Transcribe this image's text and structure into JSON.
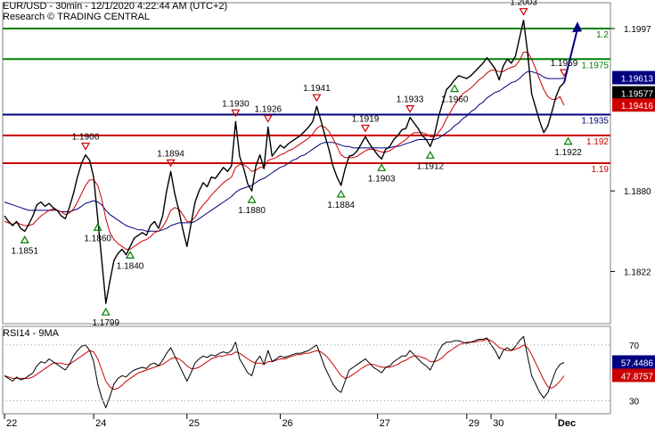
{
  "header": {
    "title": "EUR/USD - 30min - 12/1/2020 4:22:44 AM (UTC+2)",
    "source": "Research © TRADING CENTRAL"
  },
  "colors": {
    "price": "#000000",
    "ma_fast": "#cc0000",
    "ma_slow": "#000080",
    "support": "#cc0000",
    "pivot": "#000080",
    "resistance": "#008000",
    "arrow": "#000080",
    "rsi": "#000000",
    "rsi_ma": "#cc0000"
  },
  "chart_data": [
    {
      "type": "line",
      "title": "EUR/USD - 30min",
      "y_axis_side": "right",
      "ylim": [
        1.1785,
        1.2015
      ],
      "y_ticks": [
        1.1822,
        1.188,
        1.1997
      ],
      "x_date_labels": [
        "22",
        "24",
        "25",
        "26",
        "27",
        "29",
        "30",
        "Dec"
      ],
      "horizontal_levels": [
        {
          "label": "1.2",
          "value": 1.1997,
          "role": "resistance"
        },
        {
          "label": "1.1975",
          "value": 1.1975,
          "role": "resistance"
        },
        {
          "label": "1.1935",
          "value": 1.1935,
          "role": "pivot"
        },
        {
          "label": "1.192",
          "value": 1.192,
          "role": "support"
        },
        {
          "label": "1.19",
          "value": 1.19,
          "role": "support"
        }
      ],
      "price_badges": [
        {
          "value": "1.19613",
          "color": "#000080"
        },
        {
          "value": "1.19577",
          "color": "#000000"
        },
        {
          "value": "1.19416",
          "color": "#cc0000"
        }
      ],
      "swing_labels": [
        {
          "text": "1.1851",
          "value": 1.1851,
          "kind": "low"
        },
        {
          "text": "1.1906",
          "value": 1.1906,
          "kind": "high"
        },
        {
          "text": "1.1860",
          "value": 1.186,
          "kind": "low"
        },
        {
          "text": "1.1799",
          "value": 1.1799,
          "kind": "low"
        },
        {
          "text": "1.1840",
          "value": 1.184,
          "kind": "low"
        },
        {
          "text": "1.1894",
          "value": 1.1894,
          "kind": "high"
        },
        {
          "text": "1.1930",
          "value": 1.193,
          "kind": "high"
        },
        {
          "text": "1.1880",
          "value": 1.188,
          "kind": "low"
        },
        {
          "text": "1.1926",
          "value": 1.1926,
          "kind": "high"
        },
        {
          "text": "1.1941",
          "value": 1.1941,
          "kind": "high"
        },
        {
          "text": "1.1884",
          "value": 1.1884,
          "kind": "low"
        },
        {
          "text": "1.1919",
          "value": 1.1919,
          "kind": "high"
        },
        {
          "text": "1.1903",
          "value": 1.1903,
          "kind": "low"
        },
        {
          "text": "1.1933",
          "value": 1.1933,
          "kind": "high"
        },
        {
          "text": "1.1912",
          "value": 1.1912,
          "kind": "low"
        },
        {
          "text": "1.1960",
          "value": 1.196,
          "kind": "low"
        },
        {
          "text": "1.2003",
          "value": 1.2003,
          "kind": "high"
        },
        {
          "text": "1.1959",
          "value": 1.1959,
          "kind": "high"
        },
        {
          "text": "1.1922",
          "value": 1.1922,
          "kind": "low"
        }
      ],
      "series": [
        {
          "name": "EUR/USD",
          "values": [
            1.1862,
            1.1858,
            1.1855,
            1.1858,
            1.1853,
            1.1851,
            1.1856,
            1.1862,
            1.187,
            1.1872,
            1.1869,
            1.1871,
            1.1868,
            1.1866,
            1.1862,
            1.186,
            1.1868,
            1.1878,
            1.189,
            1.19,
            1.1906,
            1.1902,
            1.189,
            1.186,
            1.183,
            1.1799,
            1.1815,
            1.183,
            1.1835,
            1.1838,
            1.1834,
            1.184,
            1.1846,
            1.1848,
            1.185,
            1.1848,
            1.1855,
            1.1858,
            1.1853,
            1.1862,
            1.188,
            1.1894,
            1.1878,
            1.1866,
            1.1852,
            1.184,
            1.1856,
            1.1872,
            1.188,
            1.1886,
            1.1883,
            1.189,
            1.1889,
            1.1893,
            1.1897,
            1.1894,
            1.1898,
            1.193,
            1.1905,
            1.1896,
            1.1885,
            1.188,
            1.1898,
            1.1906,
            1.1896,
            1.1926,
            1.1905,
            1.1909,
            1.1913,
            1.1911,
            1.1914,
            1.1916,
            1.1918,
            1.192,
            1.1923,
            1.1926,
            1.193,
            1.1941,
            1.1931,
            1.192,
            1.191,
            1.1898,
            1.189,
            1.1884,
            1.1896,
            1.1905,
            1.1906,
            1.1909,
            1.1914,
            1.1919,
            1.1914,
            1.191,
            1.1906,
            1.1903,
            1.191,
            1.1912,
            1.1917,
            1.192,
            1.1924,
            1.1925,
            1.1933,
            1.1929,
            1.1925,
            1.192,
            1.1917,
            1.1912,
            1.192,
            1.1933,
            1.1943,
            1.1953,
            1.1956,
            1.196,
            1.1963,
            1.1962,
            1.1961,
            1.1963,
            1.1966,
            1.1969,
            1.1972,
            1.1976,
            1.1972,
            1.1968,
            1.196,
            1.197,
            1.1975,
            1.1972,
            1.1977,
            1.199,
            1.2003,
            1.198,
            1.195,
            1.194,
            1.193,
            1.1922,
            1.1927,
            1.1937,
            1.1948,
            1.1955,
            1.1958
          ]
        },
        {
          "name": "MA fast",
          "values": [
            1.1858,
            1.1857,
            1.1856,
            1.1857,
            1.1856,
            1.1855,
            1.1855,
            1.1856,
            1.1859,
            1.1862,
            1.1864,
            1.1866,
            1.1867,
            1.1866,
            1.1865,
            1.1863,
            1.1864,
            1.1867,
            1.1872,
            1.1878,
            1.1884,
            1.1888,
            1.1888,
            1.1884,
            1.1874,
            1.186,
            1.185,
            1.1845,
            1.1842,
            1.184,
            1.1838,
            1.1838,
            1.184,
            1.1842,
            1.1844,
            1.1845,
            1.1847,
            1.185,
            1.1851,
            1.1854,
            1.1859,
            1.1866,
            1.1868,
            1.1867,
            1.1863,
            1.1858,
            1.1858,
            1.1861,
            1.1866,
            1.187,
            1.1873,
            1.1877,
            1.188,
            1.1883,
            1.1886,
            1.1888,
            1.189,
            1.1897,
            1.1899,
            1.1899,
            1.1897,
            1.1894,
            1.1895,
            1.1897,
            1.1897,
            1.1902,
            1.1903,
            1.1904,
            1.1906,
            1.1907,
            1.1909,
            1.191,
            1.1912,
            1.1914,
            1.1916,
            1.1918,
            1.1921,
            1.1925,
            1.1927,
            1.1926,
            1.1923,
            1.1918,
            1.1912,
            1.1906,
            1.1904,
            1.1904,
            1.1904,
            1.1905,
            1.1907,
            1.1909,
            1.191,
            1.191,
            1.1909,
            1.1908,
            1.1908,
            1.1909,
            1.1911,
            1.1913,
            1.1915,
            1.1917,
            1.192,
            1.1922,
            1.1922,
            1.1922,
            1.1921,
            1.1919,
            1.1919,
            1.1922,
            1.1926,
            1.1932,
            1.1937,
            1.1942,
            1.1946,
            1.195,
            1.1952,
            1.1954,
            1.1957,
            1.196,
            1.1962,
            1.1965,
            1.1967,
            1.1967,
            1.1966,
            1.1966,
            1.1968,
            1.1969,
            1.197,
            1.1974,
            1.198,
            1.198,
            1.1975,
            1.1968,
            1.196,
            1.1953,
            1.1948,
            1.1946,
            1.1946,
            1.1948,
            1.19416
          ]
        },
        {
          "name": "MA slow",
          "values": [
            1.1872,
            1.1871,
            1.187,
            1.1869,
            1.1868,
            1.1867,
            1.1866,
            1.1866,
            1.1866,
            1.1866,
            1.1866,
            1.1866,
            1.1866,
            1.1866,
            1.1865,
            1.1865,
            1.1865,
            1.1866,
            1.1867,
            1.1869,
            1.1871,
            1.1872,
            1.1873,
            1.1872,
            1.187,
            1.1866,
            1.1863,
            1.1861,
            1.1859,
            1.1857,
            1.1855,
            1.1854,
            1.1853,
            1.1852,
            1.1852,
            1.1851,
            1.1851,
            1.1851,
            1.1851,
            1.1852,
            1.1853,
            1.1855,
            1.1856,
            1.1857,
            1.1857,
            1.1857,
            1.1857,
            1.1858,
            1.186,
            1.1862,
            1.1864,
            1.1866,
            1.1868,
            1.187,
            1.1872,
            1.1874,
            1.1876,
            1.1879,
            1.1881,
            1.1882,
            1.1883,
            1.1884,
            1.1886,
            1.1888,
            1.1889,
            1.1891,
            1.1893,
            1.1895,
            1.1897,
            1.1898,
            1.19,
            1.1902,
            1.1903,
            1.1905,
            1.1906,
            1.1908,
            1.191,
            1.1912,
            1.1914,
            1.1915,
            1.1915,
            1.1915,
            1.1914,
            1.1913,
            1.1912,
            1.1912,
            1.1911,
            1.1911,
            1.1911,
            1.1911,
            1.1911,
            1.1911,
            1.1911,
            1.1911,
            1.1911,
            1.1911,
            1.1912,
            1.1912,
            1.1913,
            1.1914,
            1.1915,
            1.1916,
            1.1917,
            1.1917,
            1.1917,
            1.1917,
            1.1917,
            1.1918,
            1.192,
            1.1922,
            1.1924,
            1.1927,
            1.1929,
            1.1932,
            1.1934,
            1.1937,
            1.1939,
            1.1942,
            1.1944,
            1.1947,
            1.1949,
            1.1951,
            1.1952,
            1.1954,
            1.1956,
            1.1958,
            1.1959,
            1.1961,
            1.1964,
            1.1966,
            1.1966,
            1.1965,
            1.1964,
            1.1962,
            1.1961,
            1.1961,
            1.1961,
            1.1961,
            1.19613
          ]
        }
      ],
      "forecast_arrow": {
        "from_value": 1.1958,
        "to_value": 1.2002
      }
    },
    {
      "type": "line",
      "title": "RSI14 - 9MA",
      "ylim": [
        22,
        82
      ],
      "y_ticks": [
        30,
        70
      ],
      "badges": [
        {
          "value": "57.4486",
          "color": "#000080"
        },
        {
          "value": "47.8757",
          "color": "#cc0000"
        }
      ],
      "series": [
        {
          "name": "RSI14",
          "values": [
            48,
            46,
            44,
            47,
            45,
            46,
            48,
            50,
            55,
            58,
            57,
            60,
            58,
            56,
            54,
            52,
            56,
            62,
            66,
            69,
            70,
            66,
            58,
            42,
            32,
            25,
            33,
            42,
            46,
            48,
            47,
            50,
            52,
            53,
            54,
            53,
            56,
            57,
            55,
            59,
            64,
            68,
            62,
            56,
            50,
            44,
            50,
            57,
            60,
            62,
            61,
            63,
            62,
            64,
            65,
            64,
            66,
            72,
            60,
            55,
            50,
            48,
            58,
            62,
            56,
            66,
            58,
            60,
            62,
            61,
            62,
            63,
            64,
            64,
            65,
            66,
            68,
            70,
            62,
            54,
            48,
            42,
            38,
            36,
            44,
            52,
            54,
            56,
            58,
            60,
            57,
            54,
            52,
            50,
            54,
            55,
            58,
            60,
            62,
            62,
            66,
            63,
            60,
            57,
            55,
            52,
            58,
            65,
            70,
            72,
            72,
            73,
            73,
            72,
            71,
            72,
            73,
            74,
            74,
            75,
            70,
            66,
            60,
            66,
            68,
            66,
            69,
            73,
            76,
            62,
            48,
            42,
            36,
            32,
            36,
            44,
            52,
            56,
            57.4486
          ]
        },
        {
          "name": "RSI MA",
          "values": [
            48,
            47,
            46,
            46,
            46,
            46,
            46,
            47,
            49,
            51,
            53,
            55,
            57,
            57,
            57,
            56,
            56,
            58,
            60,
            62,
            64,
            66,
            65,
            60,
            52,
            44,
            40,
            38,
            39,
            41,
            44,
            46,
            48,
            50,
            51,
            52,
            53,
            54,
            55,
            56,
            58,
            60,
            61,
            60,
            58,
            55,
            53,
            53,
            54,
            56,
            58,
            60,
            61,
            62,
            62,
            63,
            63,
            65,
            64,
            62,
            60,
            58,
            57,
            57,
            56,
            58,
            58,
            59,
            60,
            60,
            61,
            62,
            63,
            63,
            64,
            64,
            65,
            66,
            65,
            63,
            60,
            56,
            52,
            48,
            46,
            47,
            49,
            51,
            53,
            55,
            56,
            56,
            55,
            54,
            54,
            54,
            55,
            56,
            58,
            59,
            61,
            62,
            62,
            61,
            60,
            58,
            58,
            59,
            61,
            64,
            66,
            68,
            70,
            71,
            72,
            72,
            72,
            73,
            73,
            74,
            73,
            71,
            68,
            67,
            66,
            66,
            67,
            68,
            70,
            68,
            63,
            57,
            51,
            45,
            40,
            39,
            41,
            44,
            47.8757
          ]
        }
      ]
    }
  ],
  "footer": {
    "dates": [
      "22",
      "24",
      "25",
      "26",
      "27",
      "29",
      "30",
      "Dec"
    ]
  }
}
